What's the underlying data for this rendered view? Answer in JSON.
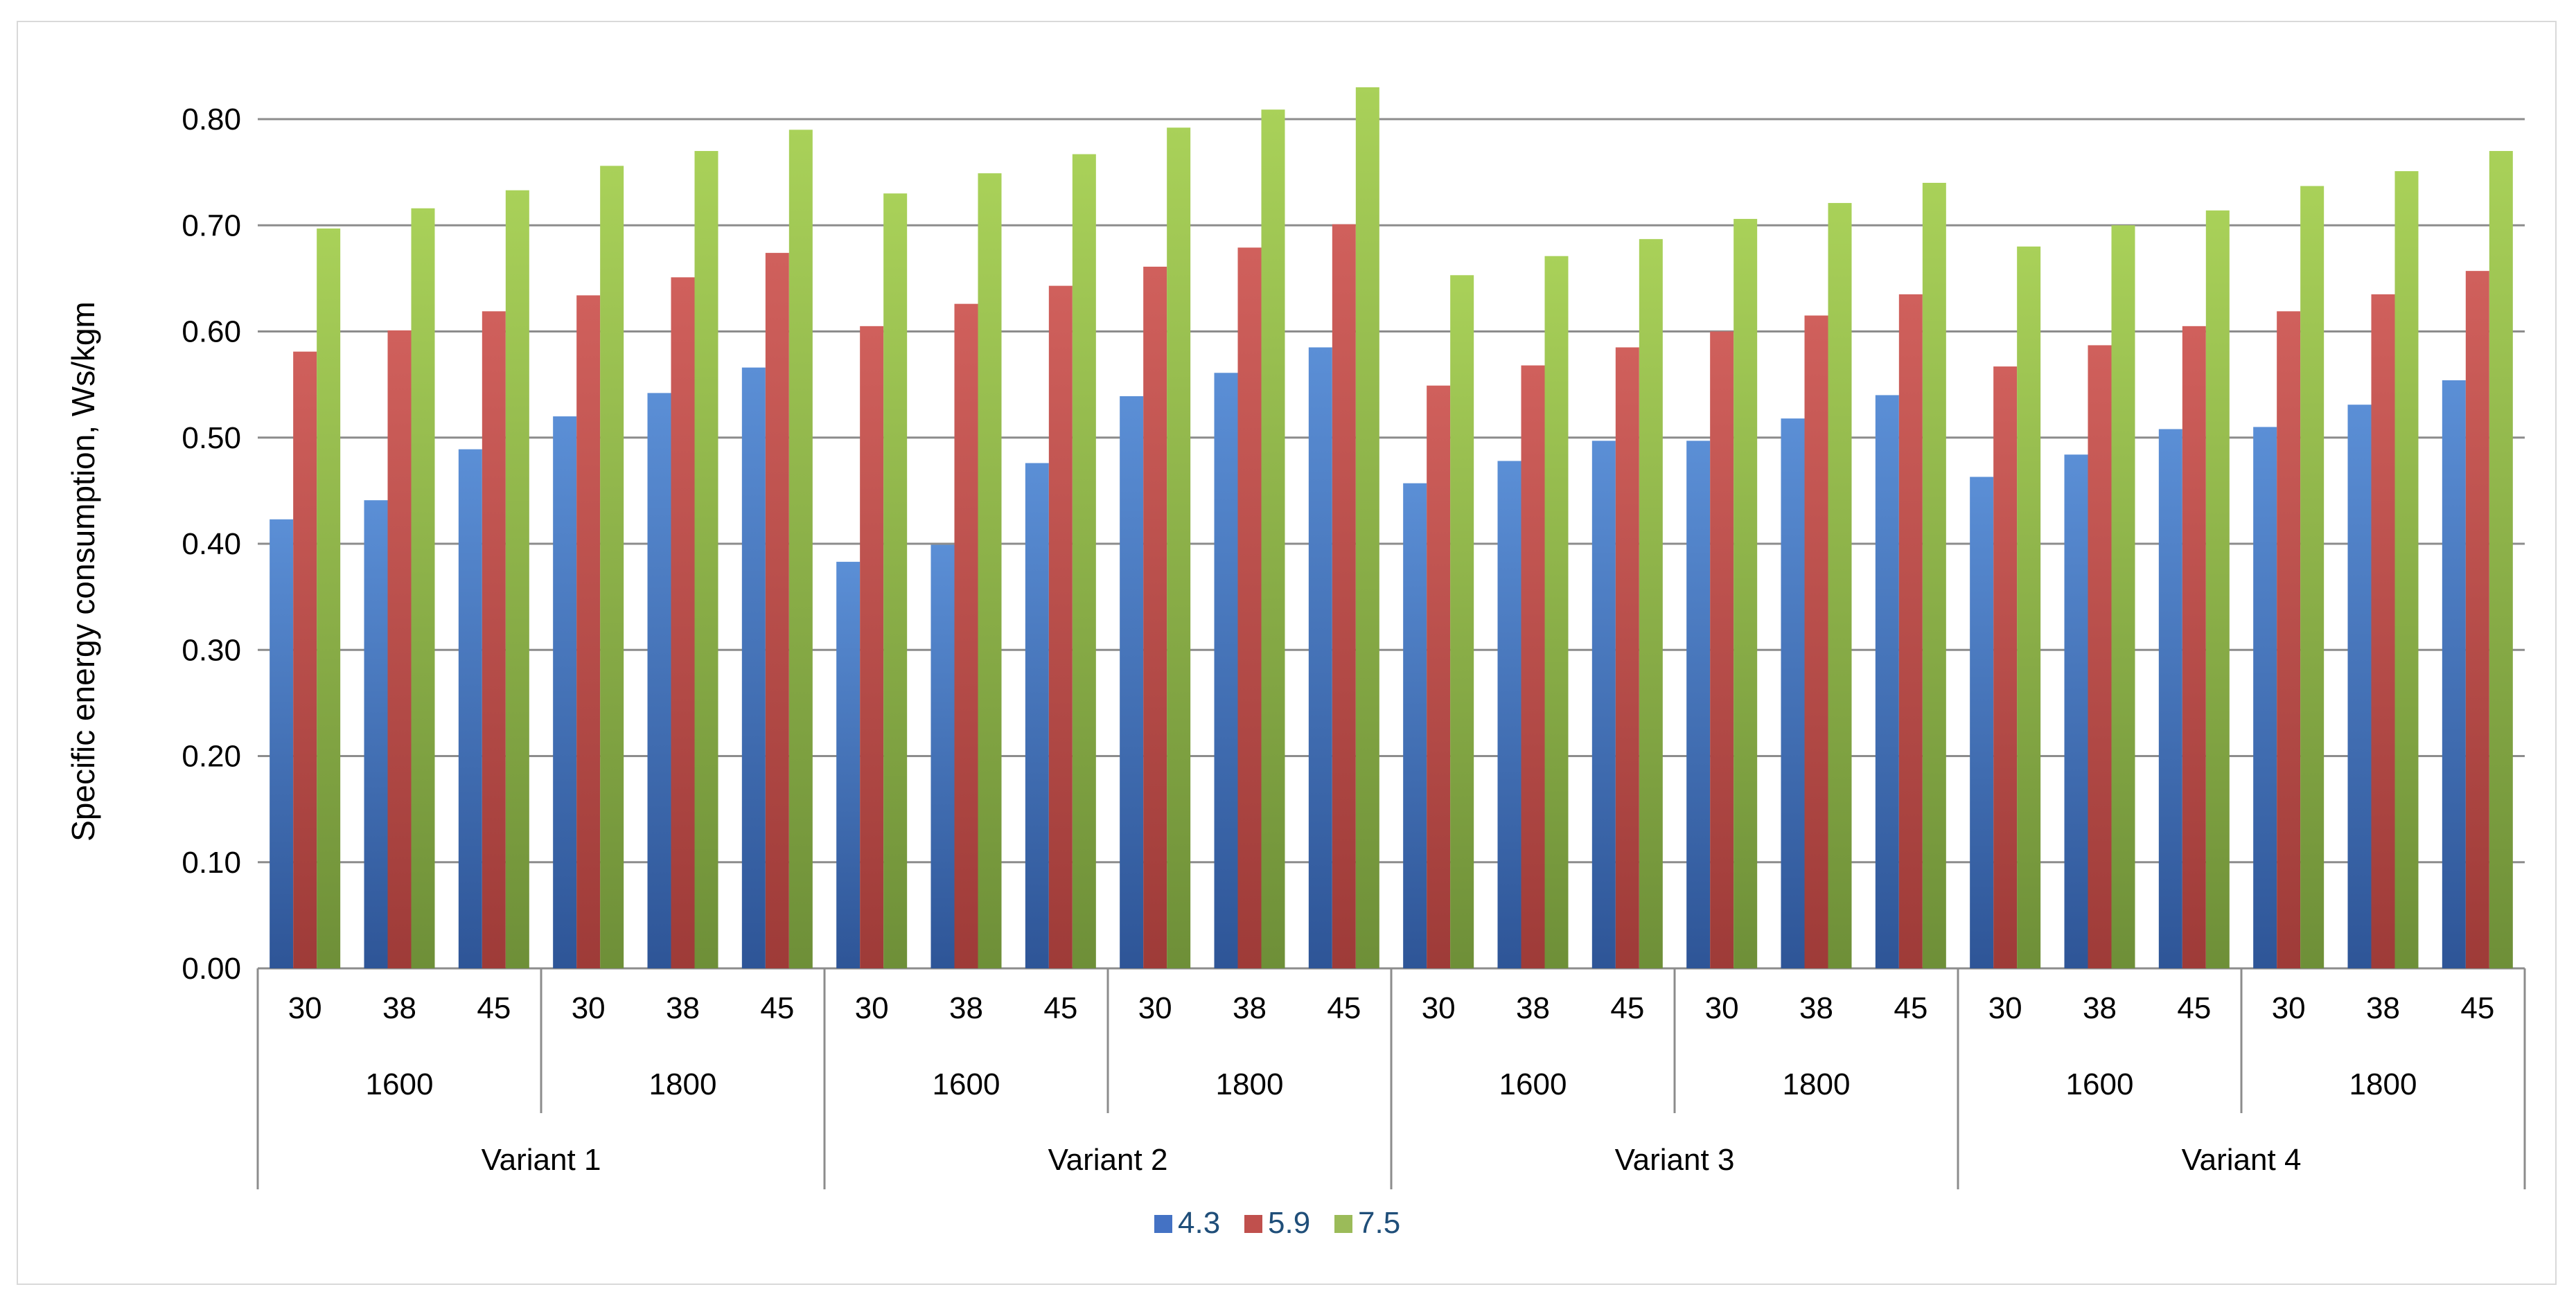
{
  "chart_data": {
    "type": "bar",
    "title": "",
    "ylabel": "Specific energy consumption, Ws/kgm",
    "xlabel": "",
    "ylim": [
      0,
      0.8
    ],
    "yticks": [
      "0.00",
      "0.10",
      "0.20",
      "0.30",
      "0.40",
      "0.50",
      "0.60",
      "0.70",
      "0.80"
    ],
    "grid": true,
    "legend_position": "bottom",
    "category_levels": {
      "level1": [
        "30",
        "38",
        "45",
        "30",
        "38",
        "45",
        "30",
        "38",
        "45",
        "30",
        "38",
        "45",
        "30",
        "38",
        "45",
        "30",
        "38",
        "45",
        "30",
        "38",
        "45",
        "30",
        "38",
        "45"
      ],
      "level2": [
        "1600",
        "1800",
        "1600",
        "1800",
        "1600",
        "1800",
        "1600",
        "1800"
      ],
      "level3": [
        "Variant 1",
        "Variant 2",
        "Variant 3",
        "Variant 4"
      ]
    },
    "series": [
      {
        "name": "4.3",
        "color": "#4472c4",
        "values": [
          0.423,
          0.441,
          0.489,
          0.52,
          0.542,
          0.566,
          0.383,
          0.399,
          0.476,
          0.539,
          0.561,
          0.585,
          0.457,
          0.478,
          0.497,
          0.497,
          0.518,
          0.54,
          0.463,
          0.484,
          0.508,
          0.51,
          0.531,
          0.554
        ]
      },
      {
        "name": "5.9",
        "color": "#c0504d",
        "values": [
          0.581,
          0.601,
          0.619,
          0.634,
          0.651,
          0.674,
          0.605,
          0.626,
          0.643,
          0.661,
          0.679,
          0.701,
          0.549,
          0.568,
          0.585,
          0.6,
          0.615,
          0.635,
          0.567,
          0.587,
          0.605,
          0.619,
          0.635,
          0.657
        ]
      },
      {
        "name": "7.5",
        "color": "#9bbb59",
        "values": [
          0.697,
          0.716,
          0.733,
          0.756,
          0.77,
          0.79,
          0.73,
          0.749,
          0.767,
          0.792,
          0.809,
          0.83,
          0.653,
          0.671,
          0.687,
          0.706,
          0.721,
          0.74,
          0.68,
          0.7,
          0.714,
          0.737,
          0.751,
          0.77
        ]
      }
    ]
  }
}
